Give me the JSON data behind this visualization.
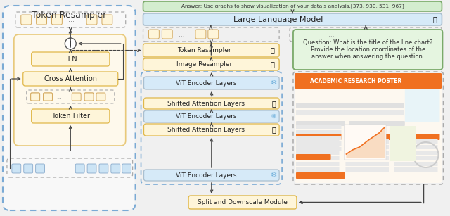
{
  "bg_color": "#f0f0f0",
  "answer_text": "Answer: Use graphs to show visualization of your data's analysis.[373, 930, 531, 967]",
  "llm_text": "Large Language Model",
  "token_resampler_text": "Token Resampler",
  "image_resampler_text": "Image Resampler",
  "vit_text": "ViT Encoder Layers",
  "shifted_text": "Shifted Attention Layers",
  "split_text": "Split and Downscale Module",
  "question_text": "Question: What is the title of the line chart?\nProvide the location coordinates of the\nanswer when answering the question.",
  "left_panel_title": "Token Resampler",
  "ffn_text": "FFN",
  "cross_attn_text": "Cross Attention",
  "token_filter_text": "Token Filter",
  "colors": {
    "answer_bg": "#d4edcf",
    "answer_border": "#7aaa6a",
    "llm_bg": "#d6eaf8",
    "llm_border": "#aabfcf",
    "orange_bg": "#fef5d9",
    "orange_border": "#e0b84a",
    "vit_bg": "#d6eaf8",
    "vit_border": "#aabfcf",
    "left_outer_bg": "#ffffff",
    "left_outer_border": "#7aaad5",
    "left_inner_bg": "#fef9ec",
    "left_inner_border": "#e8c97a",
    "dashed_gray": "#aaaaaa",
    "question_bg": "#e5f5e0",
    "question_border": "#7aaa6a",
    "orange_flame": "#e8701a",
    "snowflake_blue": "#6aadda",
    "arrow_color": "#444444",
    "beige_sq": "#fef5d9",
    "beige_sq_border": "#d4aa60",
    "blue_sq": "#cce4f5",
    "blue_sq_border": "#88aacc",
    "green_sq": "#c5e8c0",
    "green_sq_border": "#6aaa5a",
    "poster_orange": "#f07020",
    "poster_bg": "#fdf8f0"
  }
}
